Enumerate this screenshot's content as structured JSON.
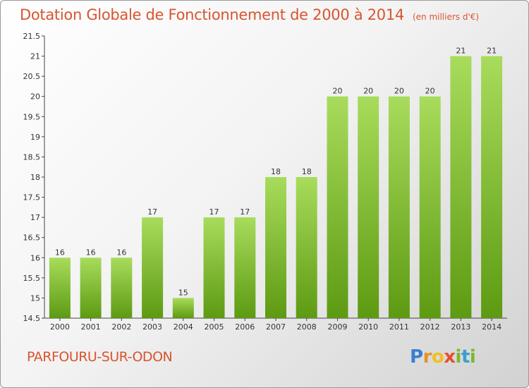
{
  "header": {
    "title": "Dotation Globale de Fonctionnement de 2000 à 2014",
    "unit": "(en milliers d'€)"
  },
  "footer": {
    "commune": "PARFOURU-SUR-ODON",
    "brand_letters": [
      "P",
      "r",
      "o",
      "x",
      "i",
      "t",
      "i"
    ],
    "brand_colors": [
      "#3a7fd0",
      "#e8902a",
      "#f0c020",
      "#e8502a",
      "#7ab82e",
      "#3a9fd0",
      "#7ab82e"
    ]
  },
  "colors": {
    "title": "#d9542f",
    "bar_top": "#a8dc5c",
    "bar_bottom": "#5d9a12"
  },
  "chart_data": {
    "type": "bar",
    "title": "Dotation Globale de Fonctionnement de 2000 à 2014",
    "categories": [
      "2000",
      "2001",
      "2002",
      "2003",
      "2004",
      "2005",
      "2006",
      "2007",
      "2008",
      "2009",
      "2010",
      "2011",
      "2012",
      "2013",
      "2014"
    ],
    "values": [
      16,
      16,
      16,
      17,
      15,
      17,
      17,
      18,
      18,
      20,
      20,
      20,
      20,
      21,
      21
    ],
    "data_labels": [
      "16",
      "16",
      "16",
      "17",
      "15",
      "17",
      "17",
      "18",
      "18",
      "20",
      "20",
      "20",
      "20",
      "21",
      "21"
    ],
    "ylim": [
      14.5,
      21.5
    ],
    "yticks": [
      14.5,
      15,
      15.5,
      16,
      16.5,
      17,
      17.5,
      18,
      18.5,
      19,
      19.5,
      20,
      20.5,
      21,
      21.5
    ],
    "ytick_labels": [
      "14.5",
      "15",
      "15.5",
      "16",
      "16.5",
      "17",
      "17.5",
      "18",
      "18.5",
      "19",
      "19.5",
      "20",
      "20.5",
      "21",
      "21.5"
    ],
    "grid": false,
    "legend": "none"
  }
}
